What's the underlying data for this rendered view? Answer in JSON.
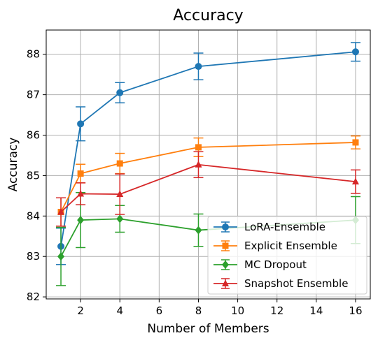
{
  "chart_data": {
    "type": "line",
    "title": "Accuracy",
    "xlabel": "Number of Members",
    "ylabel": "Accuracy",
    "xlim": [
      0.25,
      16.75
    ],
    "ylim": [
      81.95,
      88.6
    ],
    "x_ticks": [
      2,
      4,
      6,
      8,
      10,
      12,
      14,
      16
    ],
    "y_ticks": [
      82,
      83,
      84,
      85,
      86,
      87,
      88
    ],
    "grid": true,
    "legend_position": "lower-right",
    "x": [
      1,
      2,
      4,
      8,
      16
    ],
    "series": [
      {
        "name": "LoRA-Ensemble",
        "color": "#1f77b4",
        "marker": "circle",
        "values": [
          83.25,
          86.28,
          87.05,
          87.7,
          88.06
        ],
        "errors": [
          0.45,
          0.42,
          0.25,
          0.33,
          0.23
        ]
      },
      {
        "name": "Explicit Ensemble",
        "color": "#ff7f0e",
        "marker": "square",
        "values": [
          84.1,
          85.05,
          85.3,
          85.7,
          85.82
        ],
        "errors": [
          0.35,
          0.23,
          0.25,
          0.23,
          0.16
        ]
      },
      {
        "name": "MC Dropout",
        "color": "#2ca02c",
        "marker": "diamond",
        "values": [
          83.0,
          83.9,
          83.93,
          83.65,
          83.9
        ],
        "errors": [
          0.72,
          0.68,
          0.33,
          0.4,
          0.58
        ]
      },
      {
        "name": "Snapshot Ensemble",
        "color": "#d62728",
        "marker": "triangle",
        "values": [
          84.1,
          84.55,
          84.54,
          85.27,
          84.85
        ],
        "errors": [
          0.35,
          0.27,
          0.5,
          0.32,
          0.29
        ]
      }
    ]
  }
}
